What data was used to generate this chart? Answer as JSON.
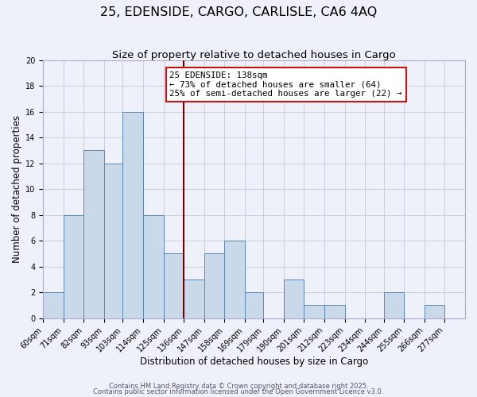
{
  "title": "25, EDENSIDE, CARGO, CARLISLE, CA6 4AQ",
  "subtitle": "Size of property relative to detached houses in Cargo",
  "xlabel": "Distribution of detached houses by size in Cargo",
  "ylabel": "Number of detached properties",
  "bin_labels": [
    "60sqm",
    "71sqm",
    "82sqm",
    "93sqm",
    "103sqm",
    "114sqm",
    "125sqm",
    "136sqm",
    "147sqm",
    "158sqm",
    "169sqm",
    "179sqm",
    "190sqm",
    "201sqm",
    "212sqm",
    "223sqm",
    "234sqm",
    "244sqm",
    "255sqm",
    "266sqm",
    "277sqm"
  ],
  "bin_edges": [
    60,
    71,
    82,
    93,
    103,
    114,
    125,
    136,
    147,
    158,
    169,
    179,
    190,
    201,
    212,
    223,
    234,
    244,
    255,
    266,
    277,
    288
  ],
  "values": [
    2,
    8,
    13,
    12,
    16,
    8,
    5,
    3,
    5,
    6,
    2,
    0,
    3,
    1,
    1,
    0,
    0,
    2,
    0,
    1,
    0
  ],
  "bar_color": "#c9d9ea",
  "bar_edge_color": "#5a87b8",
  "vline_x": 136,
  "vline_color": "#7a0000",
  "annotation_title": "25 EDENSIDE: 138sqm",
  "annotation_line2": "← 73% of detached houses are smaller (64)",
  "annotation_line3": "25% of semi-detached houses are larger (22) →",
  "ylim": [
    0,
    20
  ],
  "yticks": [
    0,
    2,
    4,
    6,
    8,
    10,
    12,
    14,
    16,
    18,
    20
  ],
  "background_color": "#eef1f9",
  "grid_color": "#c5c8d8",
  "footer1": "Contains HM Land Registry data © Crown copyright and database right 2025.",
  "footer2": "Contains public sector information licensed under the Open Government Licence v3.0.",
  "title_fontsize": 11.5,
  "subtitle_fontsize": 9.5,
  "axis_label_fontsize": 8.5,
  "tick_fontsize": 7,
  "annotation_fontsize": 7.8,
  "footer_fontsize": 6.0
}
